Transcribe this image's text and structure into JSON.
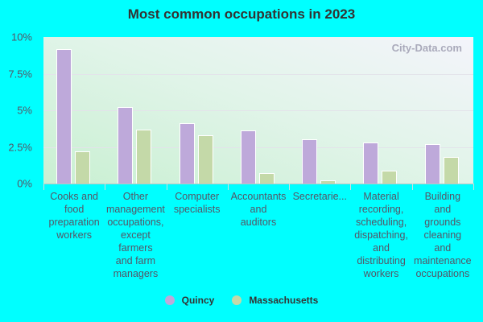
{
  "chart_data": {
    "type": "bar",
    "title": "Most common occupations in 2023",
    "xlabel": "",
    "ylabel": "",
    "ylim": [
      0,
      10
    ],
    "yticks": [
      "0%",
      "2.5%",
      "5%",
      "7.5%",
      "10%"
    ],
    "grid": true,
    "legend_position": "bottom",
    "categories": [
      "Cooks and food preparation workers",
      "Other management occupations, except farmers and farm managers",
      "Computer specialists",
      "Accountants and auditors",
      "Secretarie...",
      "Material recording, scheduling, dispatching, and distributing workers",
      "Building and grounds cleaning and maintenance occupations"
    ],
    "category_lines": [
      [
        "Cooks and",
        "food",
        "preparation",
        "workers"
      ],
      [
        "Other",
        "management",
        "occupations,",
        "except",
        "farmers",
        "and farm",
        "managers"
      ],
      [
        "Computer",
        "specialists"
      ],
      [
        "Accountants",
        "and",
        "auditors"
      ],
      [
        "Secretarie..."
      ],
      [
        "Material",
        "recording,",
        "scheduling,",
        "dispatching,",
        "and",
        "distributing",
        "workers"
      ],
      [
        "Building",
        "and",
        "grounds",
        "cleaning",
        "and",
        "maintenance",
        "occupations"
      ]
    ],
    "series": [
      {
        "name": "Quincy",
        "color": "#bea9da",
        "values": [
          9.2,
          5.2,
          4.1,
          3.6,
          3.0,
          2.8,
          2.7
        ]
      },
      {
        "name": "Massachusetts",
        "color": "#c4d9a8",
        "values": [
          2.2,
          3.7,
          3.3,
          0.7,
          0.2,
          0.9,
          1.8
        ]
      }
    ]
  },
  "watermark": "City-Data.com"
}
